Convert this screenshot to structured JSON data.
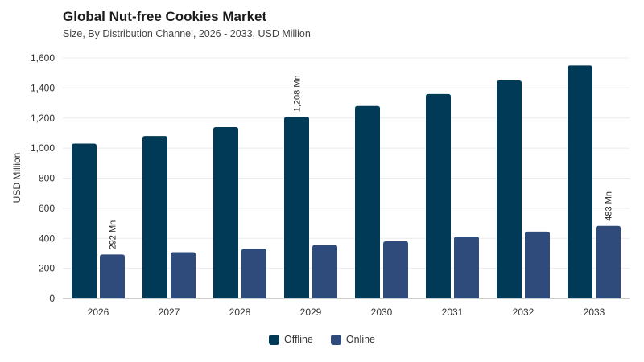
{
  "chart_data": {
    "type": "bar",
    "title": "Global Nut-free Cookies Market",
    "subtitle": "Size, By Distribution Channel, 2026 - 2033, USD Million",
    "ylabel": "USD Million",
    "xlabel": "",
    "categories": [
      "2026",
      "2027",
      "2028",
      "2029",
      "2030",
      "2031",
      "2032",
      "2033"
    ],
    "ylim": [
      0,
      1600
    ],
    "yticks": [
      0,
      200,
      400,
      600,
      800,
      1000,
      1200,
      1400,
      1600
    ],
    "ytick_labels": [
      "0",
      "200",
      "400",
      "600",
      "800",
      "1,000",
      "1,200",
      "1,400",
      "1,600"
    ],
    "grid": true,
    "legend_position": "bottom-center",
    "series": [
      {
        "name": "Offline",
        "color": "#003a57",
        "values": [
          1030,
          1080,
          1140,
          1208,
          1280,
          1360,
          1450,
          1550
        ]
      },
      {
        "name": "Online",
        "color": "#2f4b7c",
        "values": [
          292,
          308,
          330,
          355,
          380,
          412,
          445,
          483
        ]
      }
    ],
    "annotations": [
      {
        "series": 1,
        "index": 0,
        "text": "292 Mn"
      },
      {
        "series": 0,
        "index": 3,
        "text": "1,208 Mn"
      },
      {
        "series": 1,
        "index": 7,
        "text": "483 Mn"
      }
    ]
  }
}
